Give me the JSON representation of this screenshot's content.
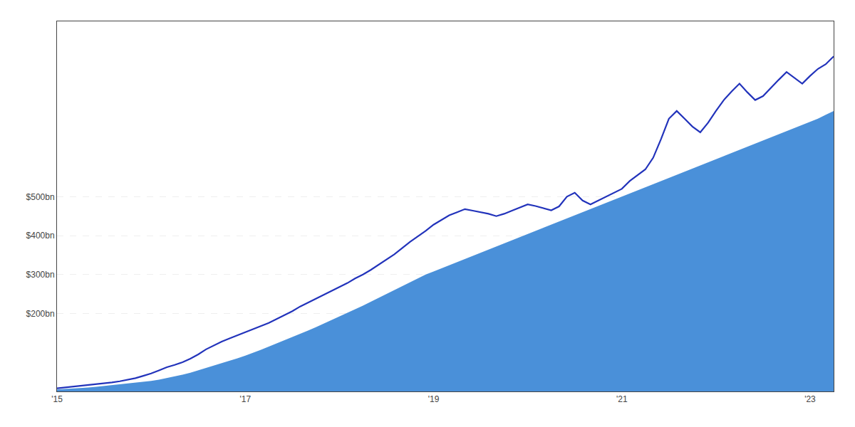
{
  "chart_data": {
    "type": "line",
    "categories": [
      "'15",
      null,
      null,
      null,
      null,
      null,
      null,
      null,
      null,
      null,
      null,
      null,
      null,
      null,
      null,
      null,
      null,
      null,
      null,
      null,
      null,
      null,
      null,
      null,
      "'17",
      null,
      null,
      null,
      null,
      null,
      null,
      null,
      null,
      null,
      null,
      null,
      null,
      null,
      null,
      null,
      null,
      null,
      null,
      null,
      null,
      null,
      null,
      null,
      "'19",
      null,
      null,
      null,
      null,
      null,
      null,
      null,
      null,
      null,
      null,
      null,
      null,
      null,
      null,
      null,
      null,
      null,
      null,
      null,
      null,
      null,
      null,
      null,
      "'21",
      null,
      null,
      null,
      null,
      null,
      null,
      null,
      null,
      null,
      null,
      null,
      null,
      null,
      null,
      null,
      null,
      null,
      null,
      null,
      null,
      null,
      null,
      null,
      "'23",
      null,
      null,
      null
    ],
    "series": [
      {
        "type": "area",
        "color": "#4a90d9",
        "values": [
          5,
          6,
          7,
          8,
          10,
          12,
          14,
          16,
          18,
          20,
          22,
          24,
          27,
          30,
          34,
          38,
          43,
          48,
          54,
          60,
          66,
          72,
          78,
          85,
          92,
          99,
          107,
          115,
          123,
          131,
          139,
          147,
          156,
          165,
          174,
          183,
          192,
          201,
          210,
          220,
          230,
          240,
          250,
          260,
          270,
          280,
          290,
          300,
          308,
          316,
          324,
          332,
          340,
          348,
          356,
          364,
          372,
          380,
          388,
          396,
          404,
          412,
          420,
          428,
          436,
          444,
          452,
          460,
          468,
          476,
          484,
          492,
          500,
          508,
          516,
          524,
          532,
          540,
          548,
          556,
          564,
          572,
          580,
          588,
          596,
          604,
          612,
          620,
          628,
          636,
          644,
          652,
          660,
          668,
          676,
          684,
          692,
          700,
          710,
          720
        ]
      },
      {
        "type": "line",
        "color": "#2233bb",
        "values": [
          8,
          10,
          12,
          14,
          16,
          18,
          20,
          23,
          26,
          30,
          34,
          40,
          46,
          54,
          62,
          68,
          75,
          84,
          95,
          108,
          118,
          128,
          136,
          144,
          152,
          160,
          168,
          176,
          186,
          196,
          206,
          218,
          228,
          238,
          248,
          258,
          268,
          278,
          290,
          300,
          312,
          325,
          338,
          352,
          368,
          384,
          398,
          412,
          428,
          440,
          452,
          460,
          468,
          464,
          460,
          456,
          450,
          456,
          464,
          472,
          480,
          476,
          470,
          465,
          475,
          500,
          510,
          490,
          480,
          490,
          500,
          510,
          520,
          540,
          555,
          570,
          600,
          648,
          700,
          720,
          700,
          680,
          665,
          690,
          720,
          748,
          770,
          790,
          768,
          748,
          758,
          780,
          800,
          820,
          805,
          790,
          810,
          828,
          840,
          860
        ]
      }
    ],
    "ylim": [
      0,
      950
    ],
    "yticks": [
      {
        "value": 500,
        "label": "$500bn"
      },
      {
        "value": 400,
        "label": "$400bn"
      },
      {
        "value": 300,
        "label": "$300bn"
      },
      {
        "value": 200,
        "label": "$200bn"
      }
    ],
    "grid": true
  }
}
